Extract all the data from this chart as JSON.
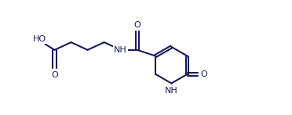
{
  "bg_color": "#ffffff",
  "line_color": "#1a1a5a",
  "line_width": 1.5,
  "font_size": 8.0,
  "fig_width": 3.72,
  "fig_height": 1.47,
  "dpi": 100,
  "xlim": [
    -0.3,
    10.3
  ],
  "ylim": [
    0.0,
    4.5
  ]
}
